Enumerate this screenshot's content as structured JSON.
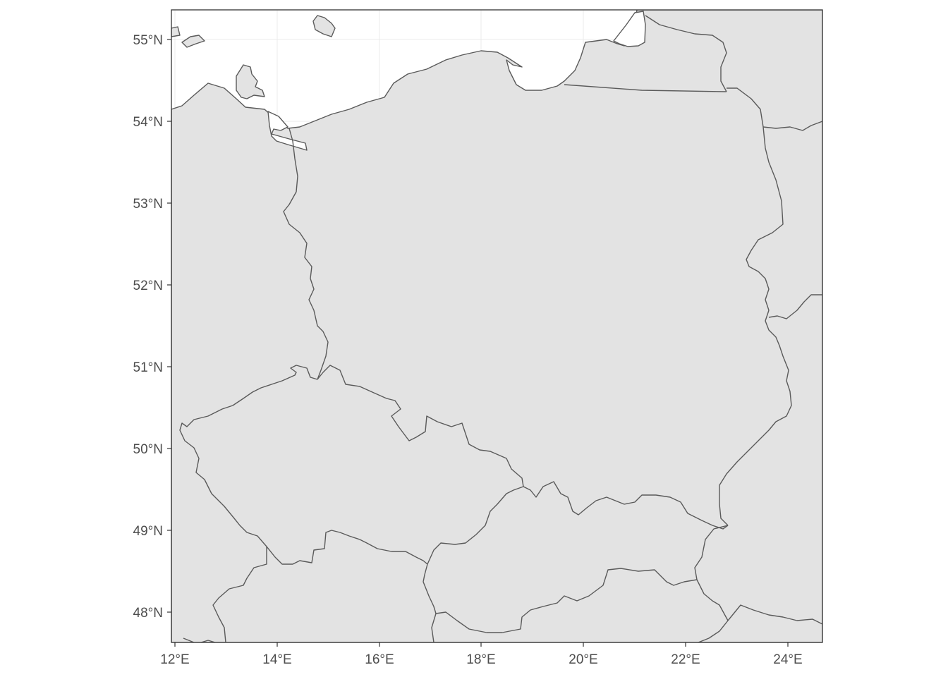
{
  "map": {
    "type": "country-borders",
    "lon_range": [
      12,
      24.6
    ],
    "lat_range": [
      47.7,
      55.3
    ],
    "colors": {
      "land": "#e3e3e3",
      "water": "#ffffff",
      "border": "#5a5a5a",
      "grid": "#ebebeb",
      "frame": "#333333"
    },
    "x_ticks": [
      "12°E",
      "14°E",
      "16°E",
      "18°E",
      "20°E",
      "22°E",
      "24°E"
    ],
    "y_ticks": [
      "55°N",
      "54°N",
      "53°N",
      "52°N",
      "51°N",
      "50°N",
      "49°N",
      "48°N"
    ]
  }
}
